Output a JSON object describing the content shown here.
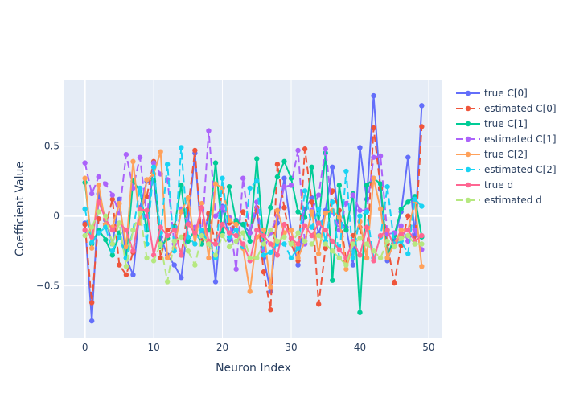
{
  "chart_data": {
    "type": "line",
    "title": "",
    "xlabel": "Neuron Index",
    "ylabel": "Coefficient Value",
    "xlim": [
      -3,
      52
    ],
    "ylim": [
      -0.87,
      0.97
    ],
    "x_ticks": [
      0,
      10,
      20,
      30,
      40,
      50
    ],
    "y_ticks": [
      -0.5,
      0,
      0.5
    ],
    "y_tick_labels": [
      "−0.5",
      "0",
      "0.5"
    ],
    "grid": true,
    "legend_position": "top-right",
    "series": [
      {
        "name": "true C[0]",
        "color": "#636efa",
        "dash": "solid",
        "values": [
          -0.05,
          -0.75,
          0.16,
          -0.03,
          -0.2,
          0.12,
          -0.3,
          -0.42,
          0.06,
          0.25,
          0.25,
          -0.15,
          -0.28,
          -0.35,
          -0.44,
          -0.05,
          0.45,
          -0.2,
          0.01,
          -0.47,
          0.07,
          -0.17,
          -0.03,
          -0.06,
          -0.12,
          0.04,
          -0.3,
          -0.54,
          -0.05,
          0.27,
          -0.1,
          -0.35,
          0.05,
          0.13,
          -0.13,
          0.04,
          0.35,
          -0.04,
          -0.08,
          -0.35,
          0.49,
          0.12,
          0.86,
          0.19,
          -0.32,
          -0.17,
          0.03,
          0.42,
          -0.14,
          0.79
        ]
      },
      {
        "name": "estimated C[0]",
        "color": "#ef553b",
        "dash": "dash",
        "values": [
          -0.06,
          -0.62,
          -0.02,
          -0.07,
          0.12,
          -0.35,
          -0.42,
          -0.26,
          0.04,
          0.14,
          0.39,
          -0.3,
          -0.1,
          -0.07,
          -0.28,
          0.05,
          0.47,
          -0.18,
          0.02,
          -0.2,
          0.2,
          -0.05,
          -0.1,
          0.03,
          -0.12,
          0.06,
          -0.4,
          -0.67,
          0.37,
          0.06,
          -0.2,
          -0.32,
          0.48,
          0.1,
          -0.63,
          -0.23,
          0.18,
          0.04,
          -0.32,
          -0.14,
          -0.08,
          -0.3,
          0.63,
          0.2,
          -0.2,
          -0.48,
          -0.21,
          0.0,
          -0.2,
          0.64
        ]
      },
      {
        "name": "true C[1]",
        "color": "#00cc96",
        "dash": "solid",
        "values": [
          0.24,
          -0.2,
          -0.1,
          -0.17,
          -0.28,
          -0.12,
          -0.3,
          0.25,
          0.18,
          -0.1,
          0.38,
          -0.22,
          -0.16,
          -0.08,
          0.22,
          -0.18,
          -0.1,
          -0.2,
          -0.1,
          0.38,
          -0.12,
          0.21,
          -0.04,
          -0.06,
          -0.18,
          0.41,
          -0.2,
          0.06,
          0.28,
          0.39,
          0.27,
          0.03,
          -0.01,
          0.35,
          -0.05,
          0.45,
          -0.46,
          0.22,
          -0.1,
          0.16,
          -0.69,
          0.22,
          0.27,
          0.23,
          -0.3,
          -0.14,
          0.05,
          0.1,
          0.14,
          -0.15
        ]
      },
      {
        "name": "estimated C[1]",
        "color": "#ab63fa",
        "dash": "dash",
        "values": [
          0.38,
          0.16,
          0.28,
          0.23,
          0.15,
          0.02,
          0.44,
          0.2,
          0.42,
          0.0,
          0.38,
          0.3,
          0.26,
          -0.2,
          0.05,
          -0.05,
          -0.08,
          -0.14,
          0.61,
          0.0,
          0.06,
          -0.01,
          -0.38,
          0.27,
          -0.12,
          0.1,
          -0.24,
          -0.12,
          0.0,
          0.21,
          0.22,
          0.47,
          -0.2,
          0.04,
          0.15,
          0.48,
          0.03,
          -0.1,
          0.09,
          0.15,
          0.04,
          0.04,
          0.42,
          0.43,
          -0.13,
          -0.12,
          -0.07,
          -0.18,
          -0.1,
          -0.24
        ]
      },
      {
        "name": "true C[2]",
        "color": "#ffa15a",
        "dash": "solid",
        "values": [
          0.27,
          -0.23,
          0.22,
          -0.06,
          -0.08,
          0.09,
          -0.22,
          0.39,
          -0.05,
          0.26,
          0.3,
          0.46,
          -0.3,
          -0.23,
          0.03,
          0.13,
          -0.2,
          0.09,
          -0.3,
          0.23,
          0.2,
          -0.03,
          -0.06,
          -0.23,
          -0.54,
          -0.15,
          -0.1,
          -0.51,
          0.04,
          -0.12,
          -0.1,
          -0.3,
          -0.18,
          0.03,
          -0.27,
          0.02,
          0.04,
          -0.01,
          -0.38,
          -0.2,
          -0.04,
          -0.3,
          0.27,
          0.05,
          -0.3,
          -0.2,
          -0.1,
          -0.1,
          0.1,
          -0.36
        ]
      },
      {
        "name": "estimated C[2]",
        "color": "#19d3f3",
        "dash": "dash",
        "values": [
          0.05,
          -0.19,
          -0.12,
          -0.08,
          -0.25,
          -0.15,
          -0.3,
          -0.1,
          0.2,
          -0.2,
          0.35,
          -0.12,
          0.37,
          -0.25,
          0.49,
          -0.15,
          -0.2,
          -0.1,
          -0.2,
          -0.3,
          0.27,
          -0.15,
          -0.1,
          -0.22,
          0.2,
          0.25,
          -0.28,
          -0.26,
          -0.2,
          -0.2,
          -0.3,
          -0.23,
          0.18,
          -0.08,
          0.05,
          -0.18,
          0.1,
          -0.3,
          0.32,
          -0.3,
          0.0,
          0.03,
          -0.3,
          -0.15,
          0.21,
          -0.2,
          -0.18,
          -0.27,
          0.12,
          0.07
        ]
      },
      {
        "name": "true d",
        "color": "#ff6692",
        "dash": "solid",
        "values": [
          -0.1,
          -0.15,
          0.1,
          -0.02,
          -0.1,
          -0.05,
          -0.1,
          -0.25,
          0.05,
          0.04,
          -0.28,
          -0.08,
          -0.14,
          -0.1,
          -0.28,
          -0.06,
          -0.12,
          0.06,
          -0.18,
          -0.2,
          -0.06,
          -0.12,
          -0.14,
          -0.2,
          -0.32,
          -0.1,
          -0.14,
          -0.2,
          -0.28,
          -0.06,
          -0.16,
          -0.2,
          -0.07,
          -0.14,
          -0.05,
          -0.1,
          -0.18,
          -0.24,
          -0.3,
          -0.18,
          -0.28,
          -0.08,
          -0.32,
          -0.14,
          -0.1,
          -0.22,
          -0.13,
          -0.1,
          -0.18,
          -0.14
        ]
      },
      {
        "name": "estimated d",
        "color": "#b6e880",
        "dash": "dash",
        "values": [
          -0.14,
          -0.08,
          0.03,
          0.0,
          -0.2,
          -0.05,
          -0.36,
          -0.1,
          0.02,
          -0.3,
          -0.32,
          -0.2,
          -0.47,
          -0.18,
          -0.15,
          -0.25,
          -0.35,
          -0.14,
          -0.2,
          -0.28,
          -0.14,
          -0.22,
          -0.18,
          -0.12,
          -0.3,
          -0.3,
          -0.2,
          -0.1,
          -0.18,
          -0.15,
          -0.2,
          -0.12,
          -0.18,
          -0.2,
          -0.14,
          -0.2,
          -0.25,
          -0.3,
          -0.35,
          -0.2,
          -0.16,
          -0.2,
          -0.25,
          -0.3,
          -0.18,
          -0.22,
          -0.16,
          -0.14,
          -0.2,
          -0.2
        ]
      }
    ]
  }
}
